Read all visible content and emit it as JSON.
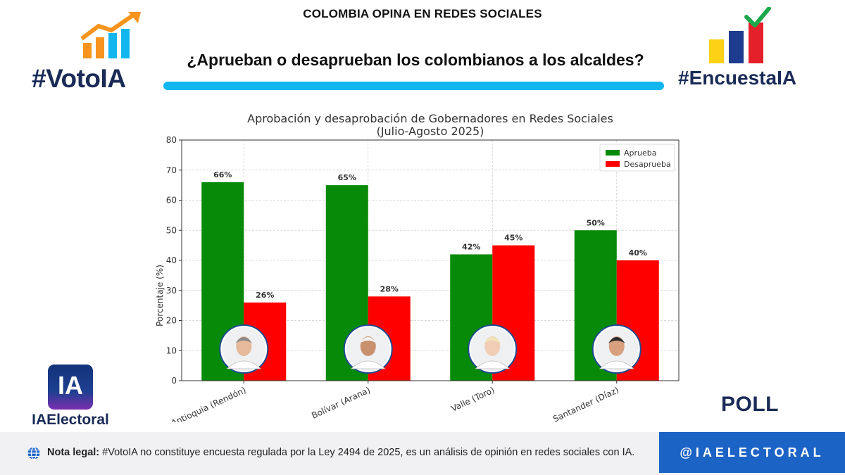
{
  "header": {
    "top_title": "COLOMBIA OPINA EN REDES SOCIALES",
    "headline": "¿Aprueban o desaprueban los colombianos a los alcaldes?"
  },
  "brand_left": {
    "hashtag": "#VotoIA",
    "bar_colors": [
      "#f7941d",
      "#f7941d",
      "#12b6ee",
      "#12b6ee"
    ],
    "arrow_color": "#f7941d"
  },
  "brand_right": {
    "hashtag": "#EncuestaIA",
    "bar_colors": [
      "#fcd116",
      "#1d3c8f",
      "#e4202a"
    ],
    "check_color": "#1aa84b"
  },
  "ia_logo": {
    "tile_text": "IA",
    "name": "IAElectoral"
  },
  "poll_label": "POLL",
  "footer": {
    "note_bold": "Nota legal:",
    "note_text": " #VotoIA no constituye encuesta regulada por la Ley 2494 de 2025, es un análisis de opinión en redes sociales con IA.",
    "handle": "@IAELECTORAL",
    "handle_bg": "#1c63c6"
  },
  "chart_data": {
    "type": "bar",
    "title": "Aprobación y desaprobación de Gobernadores en Redes Sociales",
    "subtitle": "(Julio-Agosto 2025)",
    "xlabel": "",
    "ylabel": "Porcentaje (%)",
    "ylim": [
      0,
      80
    ],
    "yticks": [
      0,
      10,
      20,
      30,
      40,
      50,
      60,
      70,
      80
    ],
    "grid": true,
    "legend_position": "top-right",
    "categories": [
      "Antioquia (Rendón)",
      "Bolívar (Arana)",
      "Valle (Toro)",
      "Santander (Díaz)"
    ],
    "series": [
      {
        "name": "Aprueba",
        "color": "#078a07",
        "values": [
          66,
          65,
          42,
          50
        ],
        "labels": [
          "66%",
          "65%",
          "42%",
          "50%"
        ]
      },
      {
        "name": "Desaprueba",
        "color": "#ff0000",
        "values": [
          26,
          28,
          45,
          40
        ],
        "labels": [
          "26%",
          "28%",
          "45%",
          "40%"
        ]
      }
    ]
  }
}
